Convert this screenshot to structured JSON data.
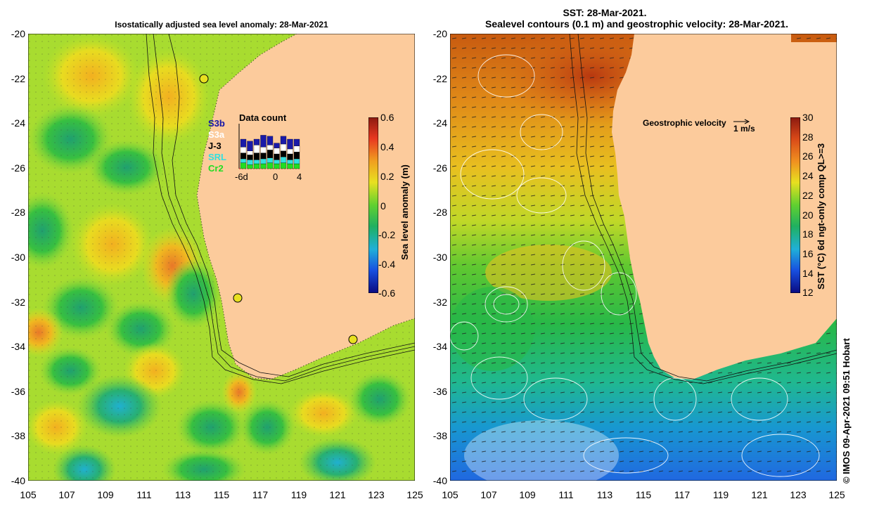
{
  "left_map": {
    "title": "Isostatically adjusted sea level anomaly: 28-Mar-2021",
    "colorbar_label": "Sea level anomaly (m)",
    "colorbar_ticks": [
      "0.6",
      "0.4",
      "0.2",
      "0",
      "-0.2",
      "-0.4",
      "-0.6"
    ],
    "colorbar_range": [
      -0.6,
      0.6
    ],
    "inset": {
      "title": "Data count",
      "satellites": [
        {
          "name": "S3b",
          "color": "#1a1aa8"
        },
        {
          "name": "S3a",
          "color": "#ffffff"
        },
        {
          "name": "J-3",
          "color": "#000000"
        },
        {
          "name": "SRL",
          "color": "#33e0e0"
        },
        {
          "name": "Cr2",
          "color": "#22dd22"
        }
      ],
      "overlay_label": "S3b",
      "axis_ticks": [
        "-6d",
        "0",
        "4"
      ]
    }
  },
  "right_map": {
    "title_line1": "SST: 28-Mar-2021.",
    "title_line2": "Sealevel contours (0.1 m) and geostrophic velocity: 28-Mar-2021.",
    "colorbar_label": "SST (°C) 6d ngt-only comp QL>=3",
    "colorbar_ticks": [
      "30",
      "28",
      "26",
      "24",
      "22",
      "20",
      "18",
      "16",
      "14",
      "12"
    ],
    "colorbar_range": [
      12,
      30
    ],
    "velocity_label": "Geostrophic velocity",
    "velocity_scale": "1 m/s"
  },
  "axes": {
    "lat_ticks": [
      "-20",
      "-22",
      "-24",
      "-26",
      "-28",
      "-30",
      "-32",
      "-34",
      "-36",
      "-38",
      "-40"
    ],
    "lon_ticks": [
      "105",
      "107",
      "109",
      "111",
      "113",
      "115",
      "117",
      "119",
      "121",
      "123",
      "125"
    ]
  },
  "credit": "© IMOS 09-Apr-2021 09:51 Hobart",
  "colors": {
    "land": "#fccb9c",
    "sla_positive": "#e8e020",
    "sla_neutral": "#9cdc32",
    "sla_negative": "#30b850",
    "sst_warm": "#c84010",
    "sst_cool": "#1070d8"
  }
}
